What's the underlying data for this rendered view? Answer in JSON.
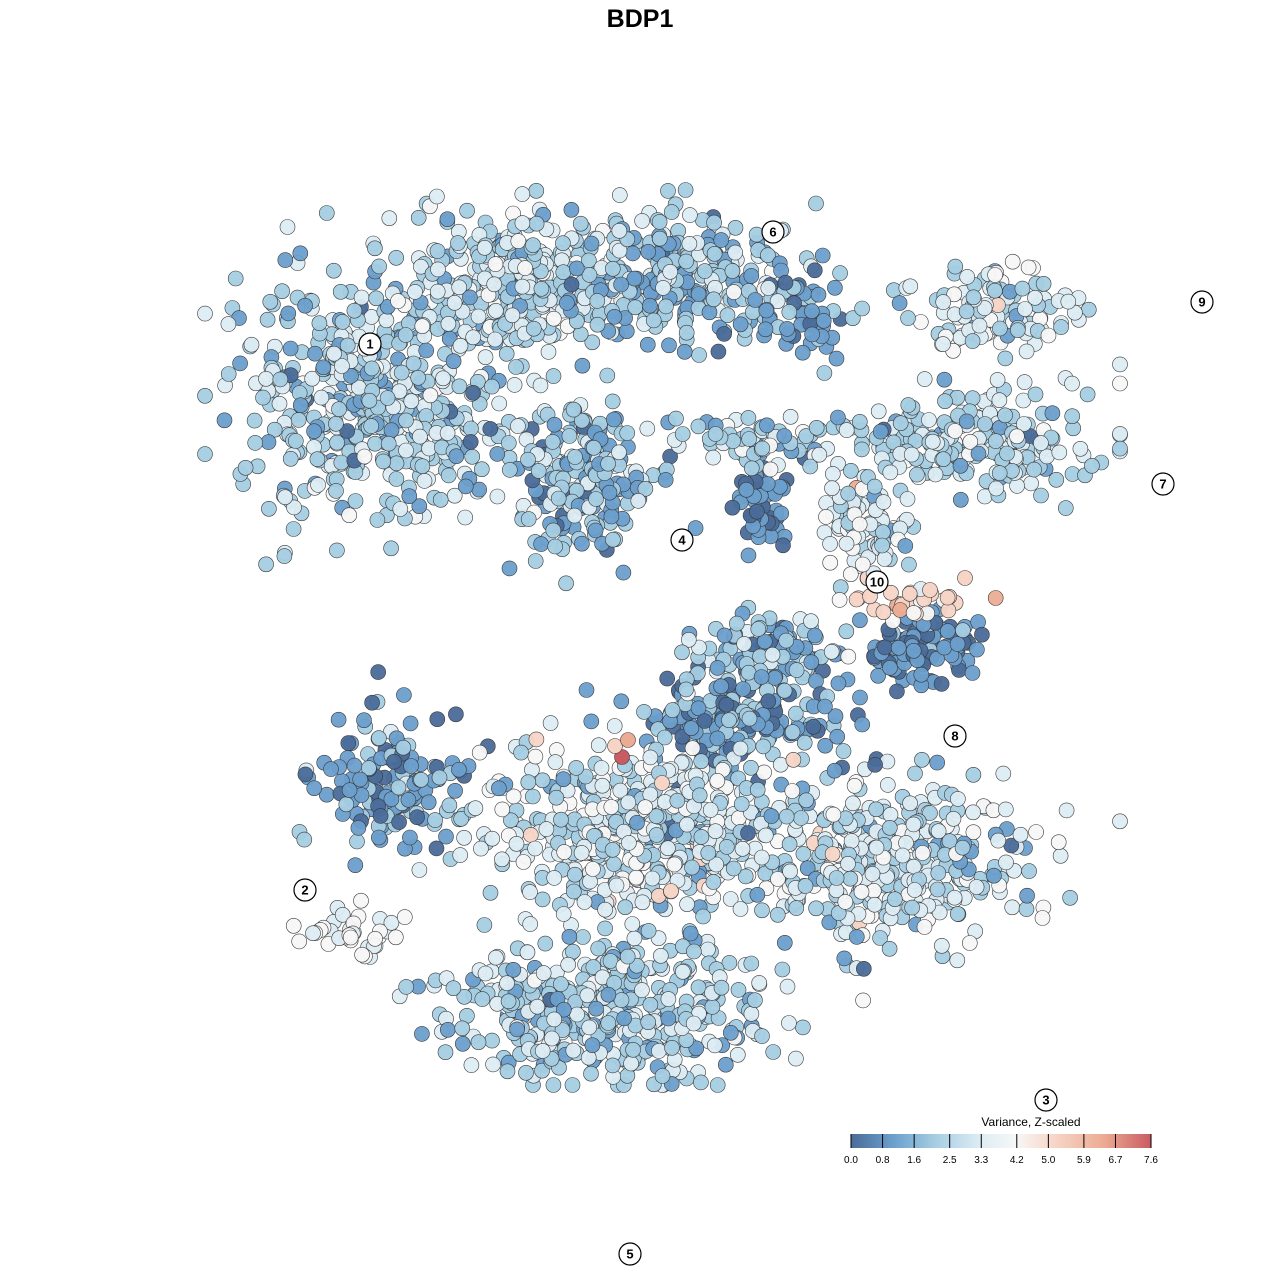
{
  "chart_data": {
    "type": "scatter",
    "title": "BDP1",
    "xlabel": "",
    "ylabel": "",
    "grid": false,
    "legend_placement": "bottom-right",
    "legend": {
      "title": "Variance, Z-scaled",
      "ticks": [
        "0.0",
        "0.8",
        "1.6",
        "2.5",
        "3.3",
        "4.2",
        "5.0",
        "5.9",
        "6.7",
        "7.6"
      ],
      "min": 0.0,
      "max": 7.6
    },
    "colors": [
      "#4a6c99",
      "#6b9fcc",
      "#a5cde3",
      "#ddecf3",
      "#f7f7f7",
      "#f7d5c6",
      "#ecac93",
      "#c95b62"
    ],
    "clusters": [
      {
        "label": "1",
        "cx": 0.0,
        "cy": 0.0
      },
      {
        "label": "2",
        "cx": -0.5,
        "cy": -3.9
      },
      {
        "label": "3",
        "cx": 5.2,
        "cy": -5.4
      },
      {
        "label": "4",
        "cx": 2.4,
        "cy": -1.4
      },
      {
        "label": "5",
        "cx": 2.0,
        "cy": -6.5
      },
      {
        "label": "6",
        "cx": 3.1,
        "cy": 0.8
      },
      {
        "label": "7",
        "cx": 6.1,
        "cy": -1.0
      },
      {
        "label": "8",
        "cx": 4.5,
        "cy": -2.8
      },
      {
        "label": "9",
        "cx": 6.4,
        "cy": 0.3
      },
      {
        "label": "10",
        "cx": 3.9,
        "cy": -1.7
      }
    ]
  }
}
